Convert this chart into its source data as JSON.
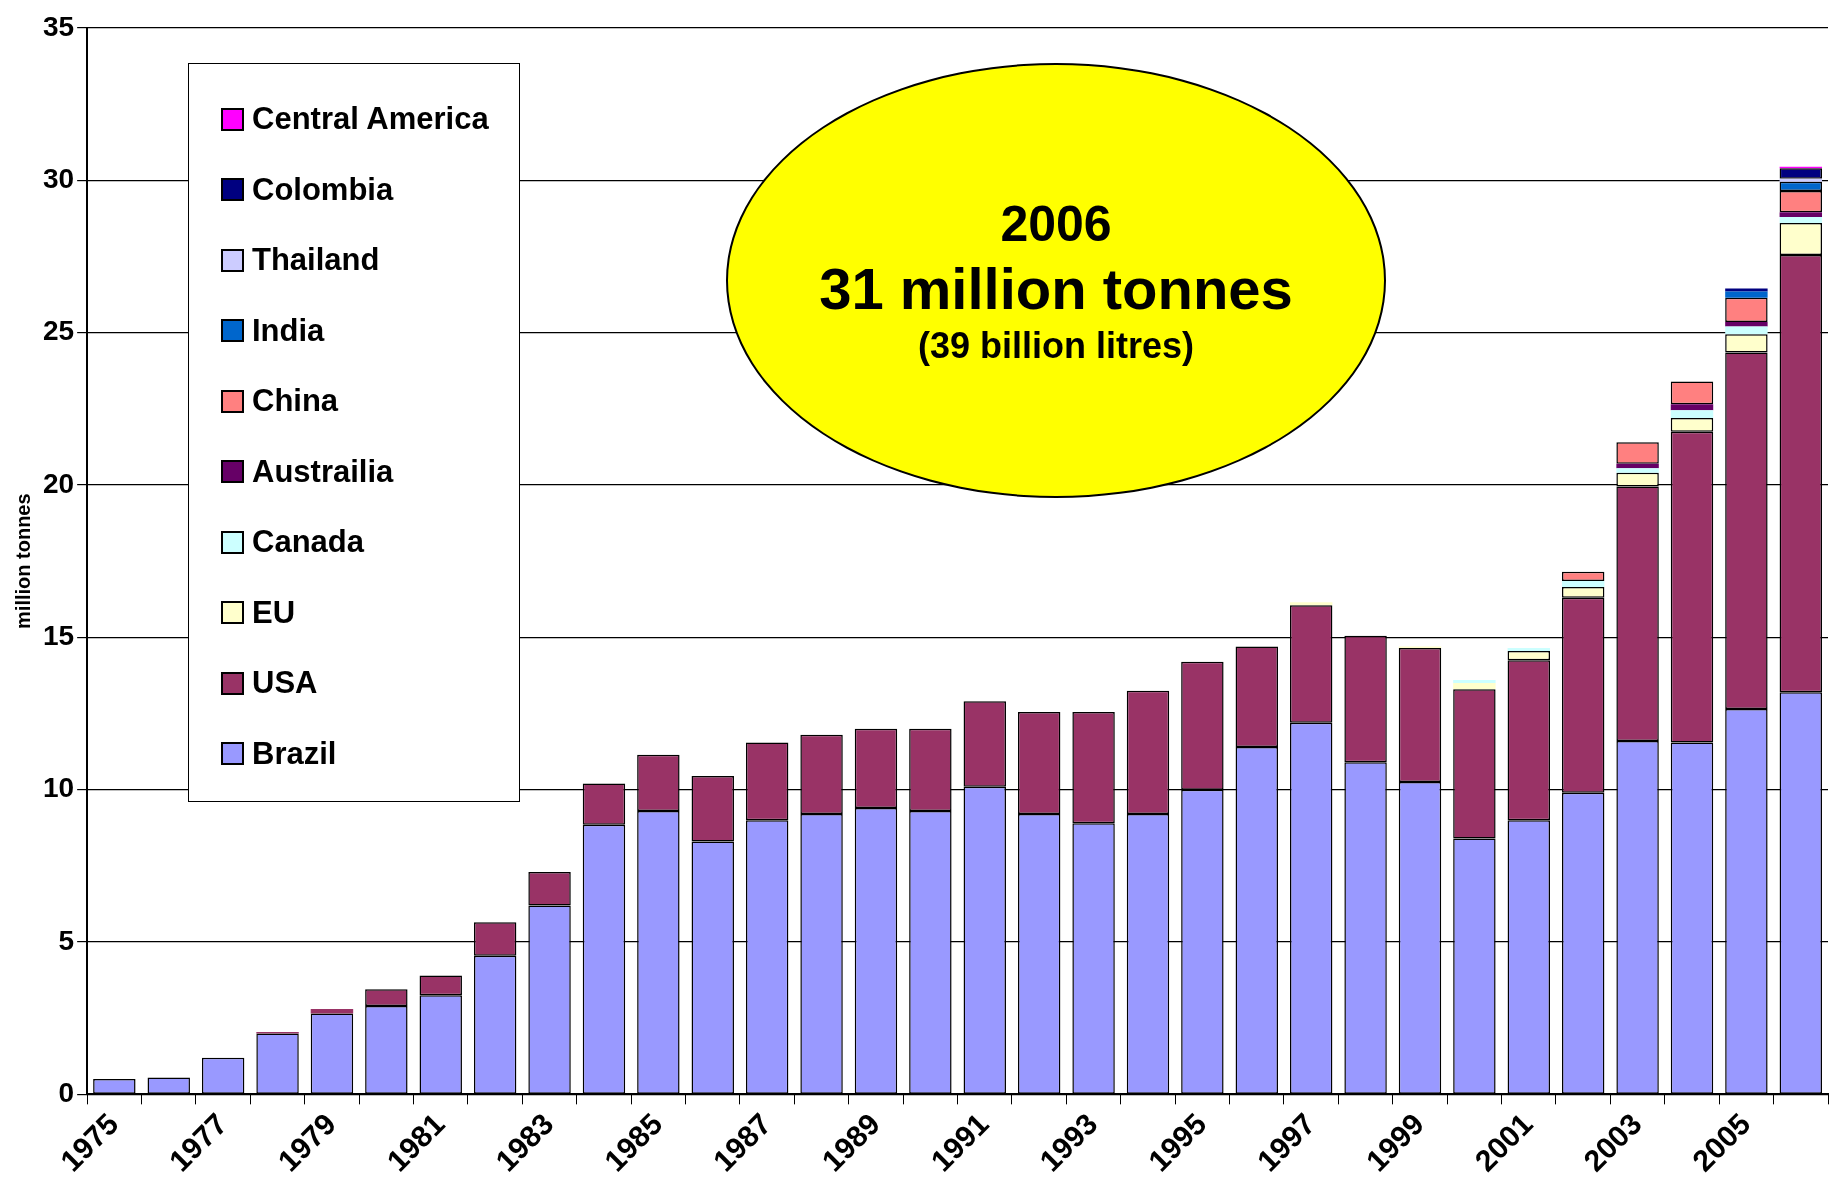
{
  "chart_data": {
    "type": "bar",
    "stacked": true,
    "ylabel": "million tonnes",
    "categories": [
      "1975",
      null,
      "1977",
      null,
      "1979",
      null,
      "1981",
      null,
      "1983",
      null,
      "1985",
      null,
      "1987",
      null,
      "1989",
      null,
      "1991",
      null,
      "1993",
      null,
      "1995",
      null,
      "1997",
      null,
      "1999",
      null,
      "2001",
      null,
      "2003",
      null,
      "2005",
      null
    ],
    "series": [
      {
        "name": "Brazil",
        "color": "#9999ff",
        "values": [
          0.5,
          0.55,
          1.2,
          2.0,
          2.65,
          2.9,
          3.25,
          4.55,
          6.2,
          8.85,
          9.3,
          8.3,
          9.0,
          9.2,
          9.4,
          9.3,
          10.1,
          9.2,
          8.9,
          9.2,
          10.0,
          11.4,
          12.2,
          10.9,
          10.25,
          8.4,
          9.0,
          9.9,
          11.6,
          11.55,
          12.65,
          13.2
        ]
      },
      {
        "name": "USA",
        "color": "#993366",
        "values": [
          null,
          null,
          null,
          0.05,
          0.15,
          0.55,
          0.65,
          1.1,
          1.1,
          1.35,
          1.85,
          2.15,
          2.55,
          2.6,
          2.6,
          2.7,
          2.8,
          3.35,
          3.65,
          4.05,
          4.2,
          3.3,
          3.85,
          4.15,
          4.4,
          4.9,
          5.25,
          6.4,
          8.35,
          10.2,
          11.7,
          14.35
        ]
      },
      {
        "name": "EU",
        "color": "#ffffcc",
        "values": [
          null,
          null,
          null,
          null,
          null,
          null,
          null,
          null,
          null,
          null,
          null,
          null,
          null,
          null,
          null,
          null,
          null,
          null,
          null,
          null,
          null,
          null,
          0.1,
          null,
          0.05,
          0.2,
          0.3,
          0.35,
          0.45,
          0.45,
          0.6,
          1.05
        ]
      },
      {
        "name": "Canada",
        "color": "#ccffff",
        "values": [
          null,
          null,
          null,
          null,
          null,
          null,
          null,
          null,
          null,
          null,
          null,
          null,
          null,
          null,
          null,
          null,
          null,
          null,
          null,
          null,
          null,
          null,
          null,
          null,
          null,
          0.1,
          0.1,
          0.2,
          0.15,
          0.25,
          0.25,
          0.2
        ]
      },
      {
        "name": "Austrailia",
        "color": "#660066",
        "values": [
          null,
          null,
          null,
          null,
          null,
          null,
          null,
          null,
          null,
          null,
          null,
          null,
          null,
          null,
          null,
          null,
          null,
          null,
          null,
          null,
          null,
          null,
          null,
          null,
          null,
          null,
          null,
          null,
          0.15,
          0.2,
          0.15,
          0.15
        ]
      },
      {
        "name": "China",
        "color": "#ff8080",
        "values": [
          null,
          null,
          null,
          null,
          null,
          null,
          null,
          null,
          null,
          null,
          null,
          null,
          null,
          null,
          null,
          null,
          null,
          null,
          null,
          null,
          null,
          null,
          null,
          null,
          null,
          null,
          null,
          0.3,
          0.7,
          0.75,
          0.8,
          0.7
        ]
      },
      {
        "name": "India",
        "color": "#0066cc",
        "values": [
          null,
          null,
          null,
          null,
          null,
          null,
          null,
          null,
          null,
          null,
          null,
          null,
          null,
          null,
          null,
          null,
          null,
          null,
          null,
          null,
          null,
          null,
          null,
          null,
          null,
          null,
          null,
          null,
          null,
          null,
          0.2,
          0.3
        ]
      },
      {
        "name": "Thailand",
        "color": "#ccccff",
        "values": [
          null,
          null,
          null,
          null,
          null,
          null,
          null,
          null,
          null,
          null,
          null,
          null,
          null,
          null,
          null,
          null,
          null,
          null,
          null,
          null,
          null,
          null,
          null,
          null,
          null,
          null,
          null,
          null,
          null,
          null,
          null,
          0.1
        ]
      },
      {
        "name": "Colombia",
        "color": "#000080",
        "values": [
          null,
          null,
          null,
          null,
          null,
          null,
          null,
          null,
          null,
          null,
          null,
          null,
          null,
          null,
          null,
          null,
          null,
          null,
          null,
          null,
          null,
          null,
          null,
          null,
          null,
          null,
          null,
          null,
          null,
          null,
          0.1,
          0.35
        ]
      },
      {
        "name": "Central America",
        "color": "#ff00ff",
        "values": [
          null,
          null,
          null,
          null,
          null,
          null,
          null,
          null,
          null,
          null,
          null,
          null,
          null,
          null,
          null,
          null,
          null,
          null,
          null,
          null,
          null,
          null,
          null,
          null,
          null,
          null,
          null,
          null,
          null,
          null,
          null,
          0.05
        ]
      }
    ],
    "ylim": [
      0,
      35
    ],
    "yticks": [
      0,
      5,
      10,
      15,
      20,
      25,
      30,
      35
    ],
    "grid": "y",
    "legend": "top left",
    "annotations": [
      "2006",
      "31 million tonnes",
      "(39 billion litres)"
    ]
  }
}
